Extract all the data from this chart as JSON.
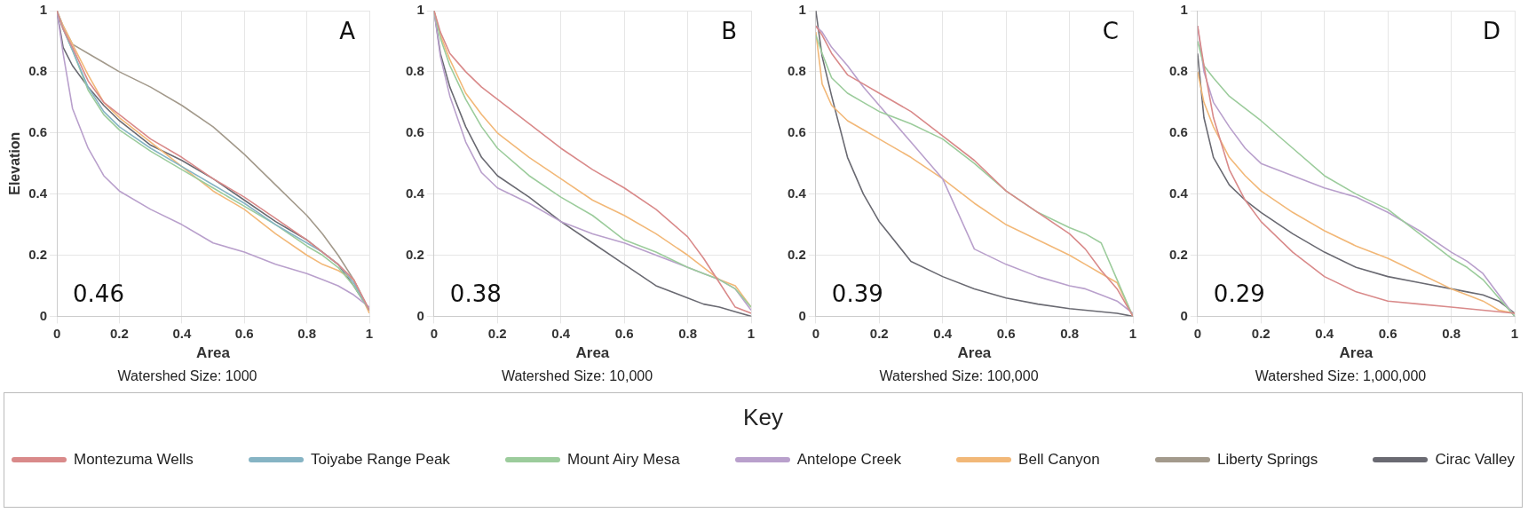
{
  "chart_data": [
    {
      "type": "line",
      "ylabel": "Elevation",
      "xlabel": "Area",
      "subtitle": "Watershed Size: 1000",
      "annotations": [
        "A",
        "0.46"
      ],
      "legend": "bottom",
      "legend_title": "Key",
      "grid": true,
      "xlim": [
        0,
        1
      ],
      "ylim": [
        0,
        1
      ],
      "xticks": [
        0,
        0.2,
        0.4,
        0.6,
        0.8,
        1
      ],
      "yticks": [
        0,
        0.2,
        0.4,
        0.6,
        0.8,
        1
      ],
      "x": [
        0,
        0.02,
        0.05,
        0.1,
        0.15,
        0.2,
        0.3,
        0.4,
        0.5,
        0.6,
        0.7,
        0.8,
        0.85,
        0.9,
        0.95,
        1
      ],
      "series": [
        {
          "name": "Montezuma Wells",
          "color": "#d98a8a",
          "values": [
            1,
            0.94,
            0.88,
            0.77,
            0.7,
            0.66,
            0.58,
            0.52,
            0.45,
            0.39,
            0.32,
            0.25,
            0.21,
            0.17,
            0.12,
            0.02
          ]
        },
        {
          "name": "Toiyabe Range Peak",
          "color": "#86b4c4",
          "values": [
            1,
            0.94,
            0.87,
            0.75,
            0.67,
            0.62,
            0.55,
            0.49,
            0.43,
            0.37,
            0.3,
            0.24,
            0.21,
            0.17,
            0.11,
            0.02
          ]
        },
        {
          "name": "Mount Airy Mesa",
          "color": "#9ccc9c",
          "values": [
            1,
            0.94,
            0.87,
            0.74,
            0.66,
            0.61,
            0.54,
            0.48,
            0.42,
            0.36,
            0.3,
            0.23,
            0.2,
            0.16,
            0.1,
            0.02
          ]
        },
        {
          "name": "Antelope Creek",
          "color": "#b9a0cc",
          "values": [
            1,
            0.86,
            0.68,
            0.55,
            0.46,
            0.41,
            0.35,
            0.3,
            0.24,
            0.21,
            0.17,
            0.14,
            0.12,
            0.1,
            0.07,
            0.03
          ]
        },
        {
          "name": "Bell Canyon",
          "color": "#f2b878",
          "values": [
            1,
            0.95,
            0.89,
            0.79,
            0.7,
            0.65,
            0.57,
            0.49,
            0.41,
            0.35,
            0.27,
            0.2,
            0.17,
            0.15,
            0.12,
            0.01
          ]
        },
        {
          "name": "Liberty Springs",
          "color": "#a39a8c",
          "values": [
            1,
            0.95,
            0.89,
            0.86,
            0.83,
            0.8,
            0.75,
            0.69,
            0.62,
            0.53,
            0.43,
            0.33,
            0.27,
            0.2,
            0.12,
            0.02
          ]
        },
        {
          "name": "Cirac Valley",
          "color": "#6a6a72",
          "values": [
            1,
            0.88,
            0.82,
            0.75,
            0.69,
            0.64,
            0.56,
            0.51,
            0.45,
            0.38,
            0.31,
            0.25,
            0.21,
            0.17,
            0.1,
            0.02
          ]
        }
      ]
    },
    {
      "type": "line",
      "xlabel": "Area",
      "subtitle": "Watershed Size: 10,000",
      "annotations": [
        "B",
        "0.38"
      ],
      "grid": true,
      "xlim": [
        0,
        1
      ],
      "ylim": [
        0,
        1
      ],
      "xticks": [
        0,
        0.2,
        0.4,
        0.6,
        0.8,
        1
      ],
      "yticks": [
        0,
        0.2,
        0.4,
        0.6,
        0.8,
        1
      ],
      "x": [
        0,
        0.02,
        0.05,
        0.1,
        0.15,
        0.2,
        0.3,
        0.4,
        0.5,
        0.6,
        0.7,
        0.8,
        0.85,
        0.9,
        0.95,
        1
      ],
      "series": [
        {
          "name": "Montezuma Wells",
          "color": "#d98a8a",
          "values": [
            1,
            0.93,
            0.86,
            0.8,
            0.75,
            0.71,
            0.63,
            0.55,
            0.48,
            0.42,
            0.35,
            0.26,
            0.19,
            0.11,
            0.03,
            0.01
          ]
        },
        {
          "name": "Mount Airy Mesa",
          "color": "#9ccc9c",
          "values": [
            1,
            0.91,
            0.82,
            0.71,
            0.62,
            0.55,
            0.46,
            0.39,
            0.33,
            0.25,
            0.21,
            0.16,
            0.14,
            0.12,
            0.09,
            0.03
          ]
        },
        {
          "name": "Antelope Creek",
          "color": "#b9a0cc",
          "values": [
            1,
            0.85,
            0.72,
            0.57,
            0.47,
            0.42,
            0.37,
            0.31,
            0.27,
            0.24,
            0.2,
            0.16,
            0.14,
            0.12,
            0.09,
            0.02
          ]
        },
        {
          "name": "Bell Canyon",
          "color": "#f2b878",
          "values": [
            1,
            0.92,
            0.84,
            0.73,
            0.66,
            0.6,
            0.52,
            0.45,
            0.38,
            0.33,
            0.27,
            0.2,
            0.16,
            0.12,
            0.1,
            0.03
          ]
        },
        {
          "name": "Cirac Valley",
          "color": "#6a6a72",
          "values": [
            1,
            0.86,
            0.75,
            0.62,
            0.52,
            0.46,
            0.39,
            0.31,
            0.24,
            0.17,
            0.1,
            0.06,
            0.04,
            0.03,
            0.015,
            0
          ]
        }
      ]
    },
    {
      "type": "line",
      "xlabel": "Area",
      "subtitle": "Watershed Size: 100,000",
      "annotations": [
        "C",
        "0.39"
      ],
      "grid": true,
      "xlim": [
        0,
        1
      ],
      "ylim": [
        0,
        1
      ],
      "xticks": [
        0,
        0.2,
        0.4,
        0.6,
        0.8,
        1
      ],
      "yticks": [
        0,
        0.2,
        0.4,
        0.6,
        0.8,
        1
      ],
      "x": [
        0,
        0.02,
        0.05,
        0.1,
        0.15,
        0.2,
        0.3,
        0.4,
        0.5,
        0.6,
        0.7,
        0.8,
        0.85,
        0.9,
        0.95,
        1
      ],
      "series": [
        {
          "name": "Montezuma Wells",
          "color": "#d98a8a",
          "values": [
            0.95,
            0.92,
            0.86,
            0.79,
            0.76,
            0.73,
            0.67,
            0.59,
            0.51,
            0.41,
            0.34,
            0.27,
            0.22,
            0.15,
            0.09,
            0
          ]
        },
        {
          "name": "Mount Airy Mesa",
          "color": "#9ccc9c",
          "values": [
            0.92,
            0.86,
            0.78,
            0.73,
            0.7,
            0.67,
            0.63,
            0.58,
            0.5,
            0.41,
            0.34,
            0.29,
            0.27,
            0.24,
            0.12,
            0
          ]
        },
        {
          "name": "Antelope Creek",
          "color": "#b9a0cc",
          "values": [
            0.95,
            0.93,
            0.88,
            0.82,
            0.75,
            0.69,
            0.57,
            0.45,
            0.22,
            0.17,
            0.13,
            0.1,
            0.09,
            0.07,
            0.05,
            0.01
          ]
        },
        {
          "name": "Bell Canyon",
          "color": "#f2b878",
          "values": [
            0.93,
            0.76,
            0.69,
            0.64,
            0.61,
            0.58,
            0.52,
            0.45,
            0.37,
            0.3,
            0.25,
            0.2,
            0.17,
            0.14,
            0.11,
            0
          ]
        },
        {
          "name": "Cirac Valley",
          "color": "#6a6a72",
          "values": [
            1,
            0.85,
            0.72,
            0.52,
            0.4,
            0.31,
            0.18,
            0.13,
            0.09,
            0.06,
            0.04,
            0.025,
            0.02,
            0.015,
            0.01,
            0
          ]
        }
      ]
    },
    {
      "type": "line",
      "xlabel": "Area",
      "subtitle": "Watershed Size: 1,000,000",
      "annotations": [
        "D",
        "0.29"
      ],
      "grid": true,
      "xlim": [
        0,
        1
      ],
      "ylim": [
        0,
        1
      ],
      "xticks": [
        0,
        0.2,
        0.4,
        0.6,
        0.8,
        1
      ],
      "yticks": [
        0,
        0.2,
        0.4,
        0.6,
        0.8,
        1
      ],
      "x": [
        0,
        0.02,
        0.05,
        0.1,
        0.15,
        0.2,
        0.3,
        0.4,
        0.5,
        0.6,
        0.7,
        0.8,
        0.85,
        0.9,
        0.95,
        1
      ],
      "series": [
        {
          "name": "Montezuma Wells",
          "color": "#d98a8a",
          "values": [
            0.95,
            0.82,
            0.65,
            0.48,
            0.38,
            0.31,
            0.21,
            0.13,
            0.08,
            0.05,
            0.04,
            0.03,
            0.025,
            0.02,
            0.015,
            0.01
          ]
        },
        {
          "name": "Mount Airy Mesa",
          "color": "#9ccc9c",
          "values": [
            0.9,
            0.82,
            0.78,
            0.72,
            0.68,
            0.64,
            0.55,
            0.46,
            0.4,
            0.35,
            0.27,
            0.19,
            0.16,
            0.12,
            0.06,
            0
          ]
        },
        {
          "name": "Antelope Creek",
          "color": "#b9a0cc",
          "values": [
            0.95,
            0.8,
            0.7,
            0.62,
            0.55,
            0.5,
            0.46,
            0.42,
            0.39,
            0.34,
            0.28,
            0.21,
            0.18,
            0.14,
            0.07,
            0
          ]
        },
        {
          "name": "Bell Canyon",
          "color": "#f2b878",
          "values": [
            0.8,
            0.7,
            0.62,
            0.52,
            0.46,
            0.41,
            0.34,
            0.28,
            0.23,
            0.19,
            0.14,
            0.09,
            0.07,
            0.05,
            0.02,
            0.01
          ]
        },
        {
          "name": "Cirac Valley",
          "color": "#6a6a72",
          "values": [
            0.86,
            0.65,
            0.52,
            0.43,
            0.38,
            0.34,
            0.27,
            0.21,
            0.16,
            0.13,
            0.11,
            0.09,
            0.08,
            0.07,
            0.05,
            0.01
          ]
        }
      ]
    }
  ]
}
